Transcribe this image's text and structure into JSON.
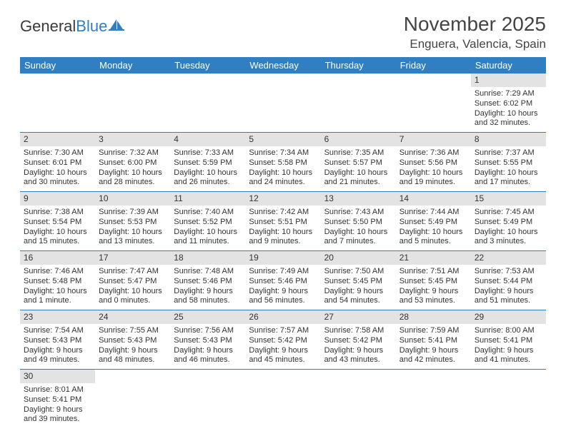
{
  "logo": {
    "text1": "General",
    "text2": "Blue"
  },
  "title": "November 2025",
  "location": "Enguera, Valencia, Spain",
  "colors": {
    "header_bg": "#2f7fc2",
    "header_fg": "#ffffff",
    "daynum_bg": "#e3e3e3",
    "rule": "#2f7fc2",
    "page_bg": "#ffffff",
    "text": "#333333"
  },
  "typography": {
    "title_fontsize": 28,
    "location_fontsize": 17,
    "dayhead_fontsize": 13,
    "cell_fontsize": 11
  },
  "dayHeaders": [
    "Sunday",
    "Monday",
    "Tuesday",
    "Wednesday",
    "Thursday",
    "Friday",
    "Saturday"
  ],
  "weeks": [
    [
      null,
      null,
      null,
      null,
      null,
      null,
      {
        "n": "1",
        "sunrise": "Sunrise: 7:29 AM",
        "sunset": "Sunset: 6:02 PM",
        "day1": "Daylight: 10 hours",
        "day2": "and 32 minutes."
      }
    ],
    [
      {
        "n": "2",
        "sunrise": "Sunrise: 7:30 AM",
        "sunset": "Sunset: 6:01 PM",
        "day1": "Daylight: 10 hours",
        "day2": "and 30 minutes."
      },
      {
        "n": "3",
        "sunrise": "Sunrise: 7:32 AM",
        "sunset": "Sunset: 6:00 PM",
        "day1": "Daylight: 10 hours",
        "day2": "and 28 minutes."
      },
      {
        "n": "4",
        "sunrise": "Sunrise: 7:33 AM",
        "sunset": "Sunset: 5:59 PM",
        "day1": "Daylight: 10 hours",
        "day2": "and 26 minutes."
      },
      {
        "n": "5",
        "sunrise": "Sunrise: 7:34 AM",
        "sunset": "Sunset: 5:58 PM",
        "day1": "Daylight: 10 hours",
        "day2": "and 24 minutes."
      },
      {
        "n": "6",
        "sunrise": "Sunrise: 7:35 AM",
        "sunset": "Sunset: 5:57 PM",
        "day1": "Daylight: 10 hours",
        "day2": "and 21 minutes."
      },
      {
        "n": "7",
        "sunrise": "Sunrise: 7:36 AM",
        "sunset": "Sunset: 5:56 PM",
        "day1": "Daylight: 10 hours",
        "day2": "and 19 minutes."
      },
      {
        "n": "8",
        "sunrise": "Sunrise: 7:37 AM",
        "sunset": "Sunset: 5:55 PM",
        "day1": "Daylight: 10 hours",
        "day2": "and 17 minutes."
      }
    ],
    [
      {
        "n": "9",
        "sunrise": "Sunrise: 7:38 AM",
        "sunset": "Sunset: 5:54 PM",
        "day1": "Daylight: 10 hours",
        "day2": "and 15 minutes."
      },
      {
        "n": "10",
        "sunrise": "Sunrise: 7:39 AM",
        "sunset": "Sunset: 5:53 PM",
        "day1": "Daylight: 10 hours",
        "day2": "and 13 minutes."
      },
      {
        "n": "11",
        "sunrise": "Sunrise: 7:40 AM",
        "sunset": "Sunset: 5:52 PM",
        "day1": "Daylight: 10 hours",
        "day2": "and 11 minutes."
      },
      {
        "n": "12",
        "sunrise": "Sunrise: 7:42 AM",
        "sunset": "Sunset: 5:51 PM",
        "day1": "Daylight: 10 hours",
        "day2": "and 9 minutes."
      },
      {
        "n": "13",
        "sunrise": "Sunrise: 7:43 AM",
        "sunset": "Sunset: 5:50 PM",
        "day1": "Daylight: 10 hours",
        "day2": "and 7 minutes."
      },
      {
        "n": "14",
        "sunrise": "Sunrise: 7:44 AM",
        "sunset": "Sunset: 5:49 PM",
        "day1": "Daylight: 10 hours",
        "day2": "and 5 minutes."
      },
      {
        "n": "15",
        "sunrise": "Sunrise: 7:45 AM",
        "sunset": "Sunset: 5:49 PM",
        "day1": "Daylight: 10 hours",
        "day2": "and 3 minutes."
      }
    ],
    [
      {
        "n": "16",
        "sunrise": "Sunrise: 7:46 AM",
        "sunset": "Sunset: 5:48 PM",
        "day1": "Daylight: 10 hours",
        "day2": "and 1 minute."
      },
      {
        "n": "17",
        "sunrise": "Sunrise: 7:47 AM",
        "sunset": "Sunset: 5:47 PM",
        "day1": "Daylight: 10 hours",
        "day2": "and 0 minutes."
      },
      {
        "n": "18",
        "sunrise": "Sunrise: 7:48 AM",
        "sunset": "Sunset: 5:46 PM",
        "day1": "Daylight: 9 hours",
        "day2": "and 58 minutes."
      },
      {
        "n": "19",
        "sunrise": "Sunrise: 7:49 AM",
        "sunset": "Sunset: 5:46 PM",
        "day1": "Daylight: 9 hours",
        "day2": "and 56 minutes."
      },
      {
        "n": "20",
        "sunrise": "Sunrise: 7:50 AM",
        "sunset": "Sunset: 5:45 PM",
        "day1": "Daylight: 9 hours",
        "day2": "and 54 minutes."
      },
      {
        "n": "21",
        "sunrise": "Sunrise: 7:51 AM",
        "sunset": "Sunset: 5:45 PM",
        "day1": "Daylight: 9 hours",
        "day2": "and 53 minutes."
      },
      {
        "n": "22",
        "sunrise": "Sunrise: 7:53 AM",
        "sunset": "Sunset: 5:44 PM",
        "day1": "Daylight: 9 hours",
        "day2": "and 51 minutes."
      }
    ],
    [
      {
        "n": "23",
        "sunrise": "Sunrise: 7:54 AM",
        "sunset": "Sunset: 5:43 PM",
        "day1": "Daylight: 9 hours",
        "day2": "and 49 minutes."
      },
      {
        "n": "24",
        "sunrise": "Sunrise: 7:55 AM",
        "sunset": "Sunset: 5:43 PM",
        "day1": "Daylight: 9 hours",
        "day2": "and 48 minutes."
      },
      {
        "n": "25",
        "sunrise": "Sunrise: 7:56 AM",
        "sunset": "Sunset: 5:43 PM",
        "day1": "Daylight: 9 hours",
        "day2": "and 46 minutes."
      },
      {
        "n": "26",
        "sunrise": "Sunrise: 7:57 AM",
        "sunset": "Sunset: 5:42 PM",
        "day1": "Daylight: 9 hours",
        "day2": "and 45 minutes."
      },
      {
        "n": "27",
        "sunrise": "Sunrise: 7:58 AM",
        "sunset": "Sunset: 5:42 PM",
        "day1": "Daylight: 9 hours",
        "day2": "and 43 minutes."
      },
      {
        "n": "28",
        "sunrise": "Sunrise: 7:59 AM",
        "sunset": "Sunset: 5:41 PM",
        "day1": "Daylight: 9 hours",
        "day2": "and 42 minutes."
      },
      {
        "n": "29",
        "sunrise": "Sunrise: 8:00 AM",
        "sunset": "Sunset: 5:41 PM",
        "day1": "Daylight: 9 hours",
        "day2": "and 41 minutes."
      }
    ],
    [
      {
        "n": "30",
        "sunrise": "Sunrise: 8:01 AM",
        "sunset": "Sunset: 5:41 PM",
        "day1": "Daylight: 9 hours",
        "day2": "and 39 minutes."
      },
      null,
      null,
      null,
      null,
      null,
      null
    ]
  ]
}
